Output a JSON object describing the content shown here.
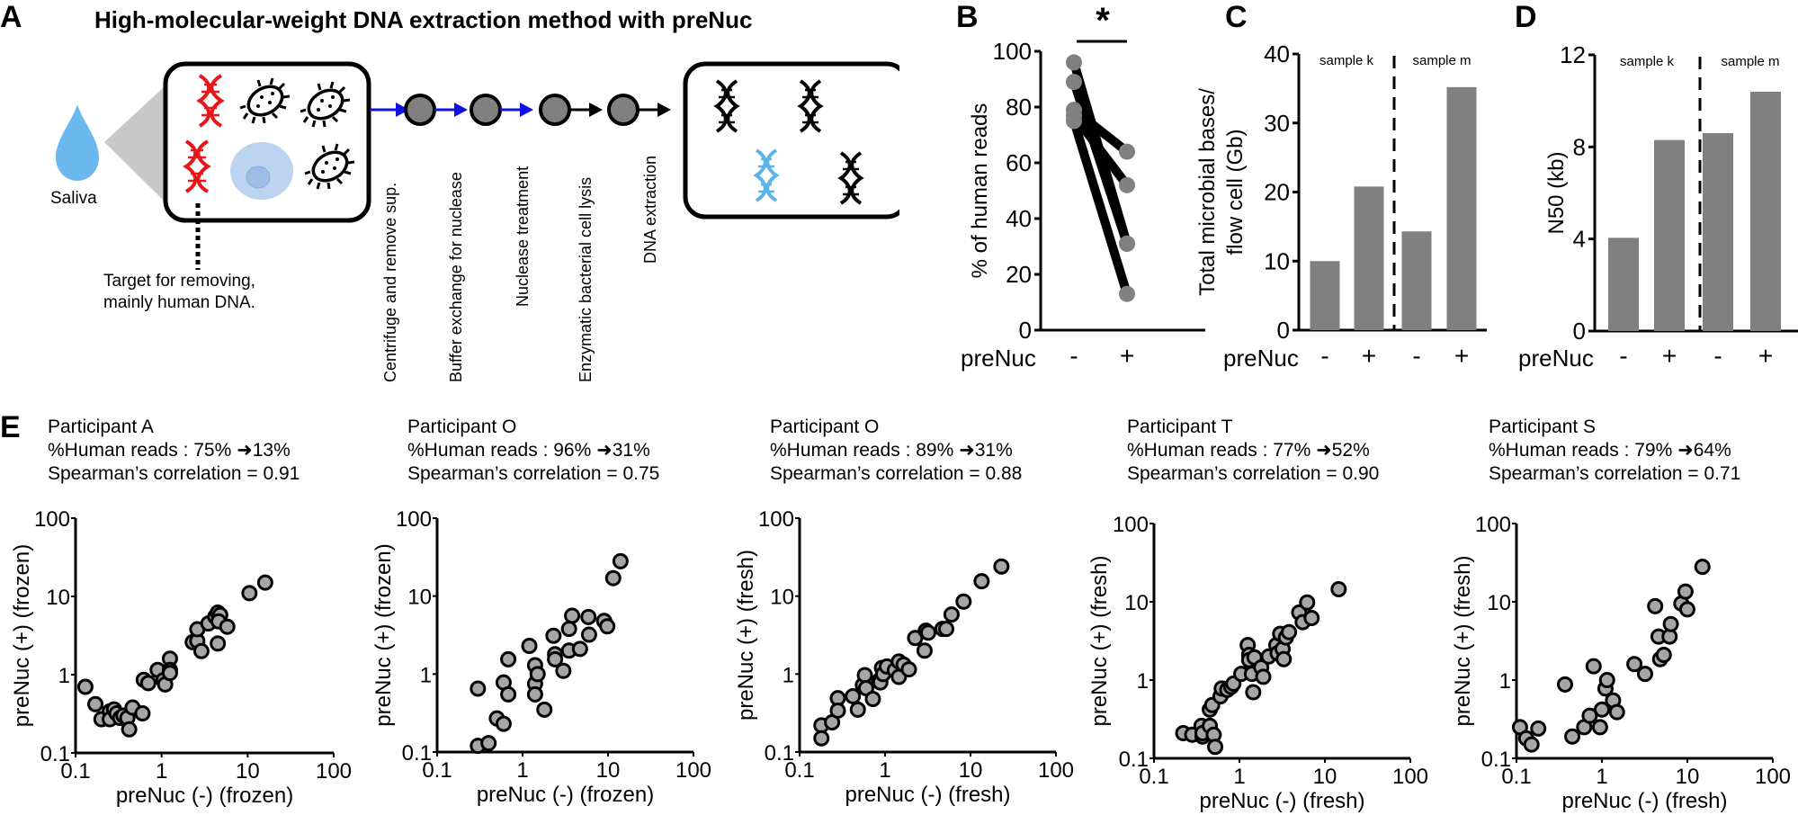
{
  "panel_a": {
    "letter": "A",
    "title": "High-molecular-weight DNA extraction method with preNuc",
    "saliva_label": "Saliva",
    "target_note_line1": "Target for removing,",
    "target_note_line2": "mainly human DNA.",
    "steps": [
      "Centrifuge and remove sup.",
      "Buffer exchange for nuclease",
      "Nuclease treatment",
      "Enzymatic bacterial cell lysis",
      "DNA extraction"
    ],
    "colors": {
      "human_dna": "#e8161b",
      "bacterial_dna": "#5ab4ea",
      "saliva": "#6cb9f0",
      "blue_arrow": "#1010e0",
      "step_node": "#808080"
    }
  },
  "chart_data": [
    {
      "panel": "B",
      "type": "line",
      "title": "",
      "significance": "*",
      "xlabel": "preNuc",
      "categories": [
        "-",
        "+"
      ],
      "ylabel": "% of human reads",
      "ylim": [
        0,
        100
      ],
      "yticks": [
        "0",
        "20",
        "40",
        "60",
        "80",
        "100"
      ],
      "series": [
        {
          "name": "Participant A",
          "values": [
            75,
            13
          ]
        },
        {
          "name": "Participant O (frozen)",
          "values": [
            96,
            31
          ]
        },
        {
          "name": "Participant O (fresh)",
          "values": [
            89,
            31
          ]
        },
        {
          "name": "Participant T",
          "values": [
            77,
            52
          ]
        },
        {
          "name": "Participant S",
          "values": [
            79,
            64
          ]
        }
      ]
    },
    {
      "panel": "C",
      "type": "bar",
      "xlabel": "preNuc",
      "ylabel_line1": "Total microbial bases/",
      "ylabel_line2": "flow cell (Gb)",
      "ylim": [
        0,
        40
      ],
      "yticks": [
        "0",
        "10",
        "20",
        "30",
        "40"
      ],
      "groups": [
        "sample k",
        "sample m"
      ],
      "categories": [
        "-",
        "+",
        "-",
        "+"
      ],
      "values": [
        10.0,
        20.8,
        14.3,
        35.2
      ]
    },
    {
      "panel": "D",
      "type": "bar",
      "xlabel": "preNuc",
      "ylabel": "N50 (kb)",
      "ylim": [
        0,
        12
      ],
      "yticks": [
        "0",
        "4",
        "8",
        "12"
      ],
      "groups": [
        "sample k",
        "sample m"
      ],
      "categories": [
        "-",
        "+",
        "-",
        "+"
      ],
      "values": [
        4.05,
        8.3,
        8.6,
        10.4
      ]
    },
    {
      "panel": "E1",
      "type": "scatter",
      "participant": "Participant A",
      "reads_before": "75%",
      "reads_after": "13%",
      "reads_prefix": "%Human reads : ",
      "spearman_text": "Spearman’s correlation = 0.91",
      "xlabel": "preNuc (-) (frozen)",
      "ylabel": "preNuc (+) (frozen)",
      "xlim": [
        0.1,
        100
      ],
      "ylim": [
        0.1,
        100
      ],
      "scale": "log",
      "ticks": [
        "0.1",
        "1",
        "10",
        "100"
      ],
      "points": [
        [
          0.13,
          0.7
        ],
        [
          0.17,
          0.42
        ],
        [
          0.2,
          0.27
        ],
        [
          0.25,
          0.34
        ],
        [
          0.25,
          0.27
        ],
        [
          0.28,
          0.36
        ],
        [
          0.3,
          0.32
        ],
        [
          0.33,
          0.28
        ],
        [
          0.36,
          0.3
        ],
        [
          0.4,
          0.28
        ],
        [
          0.42,
          0.2
        ],
        [
          0.46,
          0.38
        ],
        [
          0.6,
          0.32
        ],
        [
          0.62,
          0.86
        ],
        [
          0.7,
          0.78
        ],
        [
          0.9,
          1.15
        ],
        [
          1.05,
          0.85
        ],
        [
          1.1,
          0.75
        ],
        [
          1.25,
          1.6
        ],
        [
          1.25,
          1.15
        ],
        [
          1.25,
          1.05
        ],
        [
          2.3,
          2.6
        ],
        [
          2.6,
          2.7
        ],
        [
          2.6,
          3.8
        ],
        [
          2.9,
          2.0
        ],
        [
          3.5,
          4.5
        ],
        [
          4.2,
          5.5
        ],
        [
          4.5,
          6.2
        ],
        [
          4.8,
          5.8
        ],
        [
          4.5,
          2.5
        ],
        [
          4.6,
          4.8
        ],
        [
          5.8,
          4.1
        ],
        [
          10.5,
          11.0
        ],
        [
          16.0,
          15.0
        ]
      ]
    },
    {
      "panel": "E2",
      "type": "scatter",
      "participant": "Participant O",
      "reads_before": "96%",
      "reads_after": "31%",
      "reads_prefix": "%Human reads : ",
      "spearman_text": "Spearman’s correlation = 0.75",
      "xlabel": "preNuc (-) (frozen)",
      "ylabel": "preNuc (+) (frozen)",
      "xlim": [
        0.1,
        100
      ],
      "ylim": [
        0.1,
        100
      ],
      "scale": "log",
      "ticks": [
        "0.1",
        "1",
        "10",
        "100"
      ],
      "points": [
        [
          0.3,
          0.65
        ],
        [
          0.3,
          0.12
        ],
        [
          0.4,
          0.13
        ],
        [
          0.5,
          0.27
        ],
        [
          0.6,
          0.23
        ],
        [
          0.6,
          0.78
        ],
        [
          0.68,
          0.55
        ],
        [
          0.68,
          1.55
        ],
        [
          1.2,
          2.3
        ],
        [
          1.4,
          1.3
        ],
        [
          1.4,
          0.75
        ],
        [
          1.4,
          0.55
        ],
        [
          1.5,
          1.0
        ],
        [
          1.8,
          0.35
        ],
        [
          2.3,
          3.1
        ],
        [
          2.4,
          1.8
        ],
        [
          2.4,
          1.55
        ],
        [
          3.0,
          1.1
        ],
        [
          3.5,
          3.8
        ],
        [
          3.5,
          2.0
        ],
        [
          3.8,
          5.6
        ],
        [
          4.7,
          2.1
        ],
        [
          5.9,
          5.4
        ],
        [
          6.0,
          3.2
        ],
        [
          9.0,
          4.8
        ],
        [
          9.8,
          4.1
        ],
        [
          11.5,
          17.0
        ],
        [
          14.0,
          28.0
        ]
      ]
    },
    {
      "panel": "E3",
      "type": "scatter",
      "participant": "Participant O",
      "reads_before": "89%",
      "reads_after": "31%",
      "reads_prefix": "%Human reads : ",
      "spearman_text": "Spearman’s correlation = 0.88",
      "xlabel": "preNuc (-) (fresh)",
      "ylabel": "preNuc (+) (fresh)",
      "xlim": [
        0.1,
        100
      ],
      "ylim": [
        0.1,
        100
      ],
      "scale": "log",
      "ticks": [
        "0.1",
        "1",
        "10",
        "100"
      ],
      "points": [
        [
          0.18,
          0.22
        ],
        [
          0.18,
          0.15
        ],
        [
          0.24,
          0.24
        ],
        [
          0.28,
          0.49
        ],
        [
          0.28,
          0.34
        ],
        [
          0.42,
          0.52
        ],
        [
          0.48,
          0.35
        ],
        [
          0.55,
          0.72
        ],
        [
          0.58,
          0.97
        ],
        [
          0.6,
          0.66
        ],
        [
          0.72,
          0.48
        ],
        [
          0.85,
          0.82
        ],
        [
          0.88,
          0.78
        ],
        [
          0.92,
          1.2
        ],
        [
          0.95,
          1.0
        ],
        [
          1.05,
          1.25
        ],
        [
          1.3,
          1.12
        ],
        [
          1.45,
          0.92
        ],
        [
          1.45,
          1.45
        ],
        [
          1.65,
          1.32
        ],
        [
          1.9,
          1.15
        ],
        [
          2.25,
          2.9
        ],
        [
          2.9,
          2.0
        ],
        [
          3.0,
          3.6
        ],
        [
          3.2,
          3.4
        ],
        [
          4.7,
          3.8
        ],
        [
          5.2,
          3.8
        ],
        [
          6.0,
          5.8
        ],
        [
          8.3,
          8.5
        ],
        [
          13.5,
          15.5
        ],
        [
          23.0,
          24.0
        ]
      ]
    },
    {
      "panel": "E4",
      "type": "scatter",
      "participant": "Participant T",
      "reads_before": "77%",
      "reads_after": "52%",
      "reads_prefix": "%Human reads : ",
      "spearman_text": "Spearman’s correlation = 0.90",
      "xlabel": "preNuc (-) (fresh)",
      "ylabel": "preNuc (+) (fresh)",
      "xlim": [
        0.1,
        100
      ],
      "ylim": [
        0.1,
        100
      ],
      "scale": "log",
      "ticks": [
        "0.1",
        "1",
        "10",
        "100"
      ],
      "points": [
        [
          0.22,
          0.21
        ],
        [
          0.28,
          0.2
        ],
        [
          0.36,
          0.26
        ],
        [
          0.37,
          0.19
        ],
        [
          0.37,
          0.21
        ],
        [
          0.45,
          0.26
        ],
        [
          0.5,
          0.2
        ],
        [
          0.52,
          0.14
        ],
        [
          0.45,
          0.42
        ],
        [
          0.48,
          0.48
        ],
        [
          0.6,
          0.62
        ],
        [
          0.62,
          0.78
        ],
        [
          0.72,
          0.75
        ],
        [
          0.8,
          0.82
        ],
        [
          0.85,
          0.9
        ],
        [
          1.05,
          1.2
        ],
        [
          1.25,
          2.8
        ],
        [
          1.3,
          2.1
        ],
        [
          1.3,
          1.8
        ],
        [
          1.4,
          1.2
        ],
        [
          1.45,
          0.7
        ],
        [
          1.5,
          1.95
        ],
        [
          1.8,
          1.45
        ],
        [
          1.9,
          1.1
        ],
        [
          2.2,
          2.0
        ],
        [
          2.7,
          2.8
        ],
        [
          2.8,
          2.2
        ],
        [
          3.0,
          3.9
        ],
        [
          3.2,
          2.5
        ],
        [
          3.3,
          1.85
        ],
        [
          3.5,
          3.5
        ],
        [
          3.8,
          4.1
        ],
        [
          5.0,
          7.3
        ],
        [
          5.5,
          5.5
        ],
        [
          6.2,
          9.8
        ],
        [
          7.0,
          6.2
        ],
        [
          14.5,
          14.5
        ]
      ]
    },
    {
      "panel": "E5",
      "type": "scatter",
      "participant": "Participant S",
      "reads_before": "79%",
      "reads_after": "64%",
      "reads_prefix": "%Human reads : ",
      "spearman_text": "Spearman’s correlation = 0.71",
      "xlabel": "preNuc (-) (fresh)",
      "ylabel": "preNuc (+) (fresh)",
      "xlim": [
        0.1,
        100
      ],
      "ylim": [
        0.1,
        100
      ],
      "scale": "log",
      "ticks": [
        "0.1",
        "1",
        "10",
        "100"
      ],
      "points": [
        [
          0.11,
          0.25
        ],
        [
          0.13,
          0.18
        ],
        [
          0.15,
          0.15
        ],
        [
          0.18,
          0.24
        ],
        [
          0.37,
          0.88
        ],
        [
          0.45,
          0.19
        ],
        [
          0.62,
          0.25
        ],
        [
          0.72,
          0.35
        ],
        [
          0.8,
          1.5
        ],
        [
          0.95,
          0.25
        ],
        [
          1.0,
          0.42
        ],
        [
          1.1,
          0.78
        ],
        [
          1.15,
          1.0
        ],
        [
          1.35,
          0.55
        ],
        [
          1.5,
          0.39
        ],
        [
          2.4,
          1.6
        ],
        [
          3.2,
          1.2
        ],
        [
          4.2,
          8.8
        ],
        [
          4.6,
          3.6
        ],
        [
          4.8,
          1.85
        ],
        [
          5.3,
          2.1
        ],
        [
          6.2,
          3.6
        ],
        [
          6.4,
          5.2
        ],
        [
          8.5,
          9.5
        ],
        [
          9.5,
          13.5
        ],
        [
          10.0,
          8.0
        ],
        [
          15.0,
          28.0
        ]
      ]
    }
  ],
  "panel_b": {
    "letter": "B"
  },
  "panel_c": {
    "letter": "C"
  },
  "panel_d": {
    "letter": "D"
  },
  "panel_e": {
    "letter": "E"
  }
}
